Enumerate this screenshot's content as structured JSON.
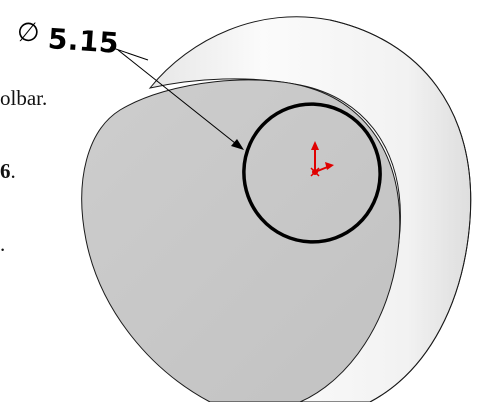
{
  "document": {
    "line1": "olbar.",
    "line2_bold": "6",
    "line2_tail": ".",
    "line3": "."
  },
  "dimension": {
    "symbol": "∅",
    "value": "5.15"
  },
  "colors": {
    "face": "#c7c7c7",
    "cylinder_side_light": "#f4f4f4",
    "cylinder_side_shadow": "#d9d9d9",
    "outline": "#1a1a1a",
    "circle_stroke": "#000000",
    "origin_red": "#e00000"
  },
  "icons": {
    "origin": "origin-triad-icon"
  }
}
